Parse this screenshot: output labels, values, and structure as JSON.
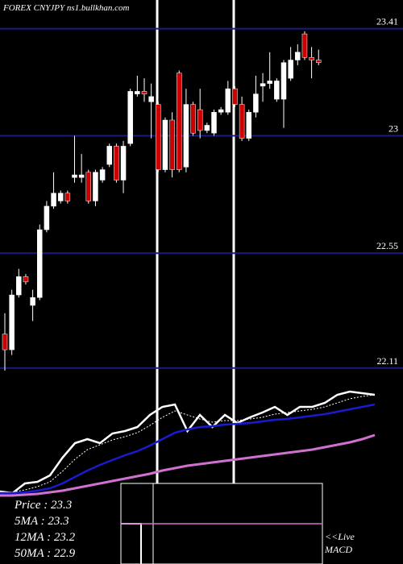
{
  "chart_data": {
    "type": "candlestick",
    "title": "FOREX  CNYJPY ns1.bullkhan.com",
    "ylim": [
      22.1,
      23.52
    ],
    "yticks": [
      23.41,
      23,
      22.55,
      22.11
    ],
    "grid": true,
    "grid_color": "#1a1a80",
    "up_color": "#ffffff",
    "down_color": "#cc0000",
    "open": [
      22.24,
      22.18,
      22.39,
      22.46,
      22.35,
      22.38,
      22.64,
      22.73,
      22.75,
      22.78,
      22.84,
      22.84,
      22.86,
      22.75,
      22.83,
      22.89,
      22.96,
      22.83,
      22.97,
      23.16,
      23.17,
      23.13,
      23.12,
      22.87,
      23.06,
      23.24,
      22.88,
      23.12,
      23.1,
      23.02,
      23.01,
      23.09,
      23.09,
      23.18,
      23.12,
      22.99,
      23.09,
      23.19,
      23.2,
      23.14,
      23.14,
      23.22,
      23.29,
      23.39,
      23.3,
      23.29
    ],
    "high": [
      22.32,
      22.41,
      22.49,
      22.47,
      22.41,
      22.66,
      22.75,
      22.86,
      22.79,
      22.79,
      23.0,
      22.93,
      22.87,
      22.87,
      22.88,
      22.97,
      22.97,
      22.98,
      23.18,
      23.23,
      23.22,
      23.2,
      23.13,
      23.07,
      23.09,
      23.25,
      23.18,
      23.13,
      23.18,
      23.05,
      23.1,
      23.11,
      23.21,
      23.19,
      23.15,
      23.1,
      23.23,
      23.24,
      23.32,
      23.22,
      23.29,
      23.34,
      23.35,
      23.4,
      23.34,
      23.33
    ],
    "low": [
      22.1,
      22.16,
      22.38,
      22.43,
      22.29,
      22.37,
      22.63,
      22.72,
      22.74,
      22.74,
      22.82,
      22.82,
      22.74,
      22.73,
      22.82,
      22.88,
      22.82,
      22.78,
      22.96,
      23.15,
      23.13,
      22.99,
      22.86,
      22.86,
      22.84,
      22.86,
      22.86,
      23.0,
      22.99,
      23.01,
      23.0,
      23.08,
      23.08,
      23.11,
      22.98,
      22.98,
      23.07,
      23.13,
      23.18,
      23.13,
      23.03,
      23.21,
      23.27,
      23.29,
      23.22,
      23.27
    ],
    "close": [
      22.18,
      22.39,
      22.46,
      22.44,
      22.38,
      22.64,
      22.73,
      22.78,
      22.78,
      22.75,
      22.85,
      22.85,
      22.75,
      22.86,
      22.87,
      22.96,
      22.83,
      22.96,
      23.17,
      23.17,
      23.16,
      23.15,
      22.87,
      23.06,
      22.87,
      22.87,
      23.12,
      23.01,
      23.02,
      23.04,
      23.09,
      23.1,
      23.18,
      23.12,
      22.99,
      23.09,
      23.16,
      23.2,
      23.21,
      23.21,
      23.28,
      23.29,
      23.32,
      23.3,
      23.29,
      23.28
    ],
    "indicator_ylim": [
      21.9,
      23.5
    ],
    "lines": [
      {
        "color": "#ffffff",
        "dash": false,
        "width": 2.5,
        "values": [
          22.2,
          22.18,
          22.3,
          22.32,
          22.4,
          22.62,
          22.8,
          22.85,
          22.8,
          22.92,
          22.95,
          23.0,
          23.15,
          23.25,
          23.28,
          22.95,
          23.15,
          23.0,
          23.15,
          23.05,
          23.12,
          23.18,
          23.25,
          23.15,
          23.25,
          23.25,
          23.3,
          23.4,
          23.44,
          23.42,
          23.4
        ]
      },
      {
        "color": "#ffffff",
        "dash": true,
        "width": 1,
        "values": [
          22.2,
          22.19,
          22.22,
          22.26,
          22.32,
          22.45,
          22.6,
          22.72,
          22.78,
          22.84,
          22.88,
          22.93,
          23.02,
          23.12,
          23.2,
          23.15,
          23.1,
          23.06,
          23.08,
          23.08,
          23.1,
          23.12,
          23.16,
          23.18,
          23.2,
          23.22,
          23.25,
          23.3,
          23.35,
          23.38,
          23.4
        ]
      },
      {
        "color": "#1a1ad0",
        "dash": false,
        "width": 2.5,
        "values": [
          22.18,
          22.18,
          22.19,
          22.21,
          22.24,
          22.3,
          22.38,
          22.46,
          22.53,
          22.59,
          22.65,
          22.7,
          22.77,
          22.85,
          22.93,
          22.97,
          23.0,
          23.01,
          23.03,
          23.04,
          23.05,
          23.07,
          23.09,
          23.1,
          23.12,
          23.14,
          23.16,
          23.19,
          23.22,
          23.25,
          23.28
        ]
      },
      {
        "color": "#d070d0",
        "dash": false,
        "width": 3,
        "values": [
          22.15,
          22.15,
          22.16,
          22.17,
          22.19,
          22.21,
          22.24,
          22.27,
          22.3,
          22.33,
          22.36,
          22.39,
          22.42,
          22.46,
          22.49,
          22.52,
          22.54,
          22.56,
          22.58,
          22.6,
          22.62,
          22.64,
          22.66,
          22.68,
          22.7,
          22.72,
          22.75,
          22.78,
          22.81,
          22.85,
          22.9
        ]
      }
    ],
    "readout": [
      "Price   : 23.3",
      "5MA   : 23.3",
      "12MA : 23.2",
      "50MA : 22.9"
    ],
    "macd_label": [
      "<<Live",
      "MACD"
    ]
  }
}
